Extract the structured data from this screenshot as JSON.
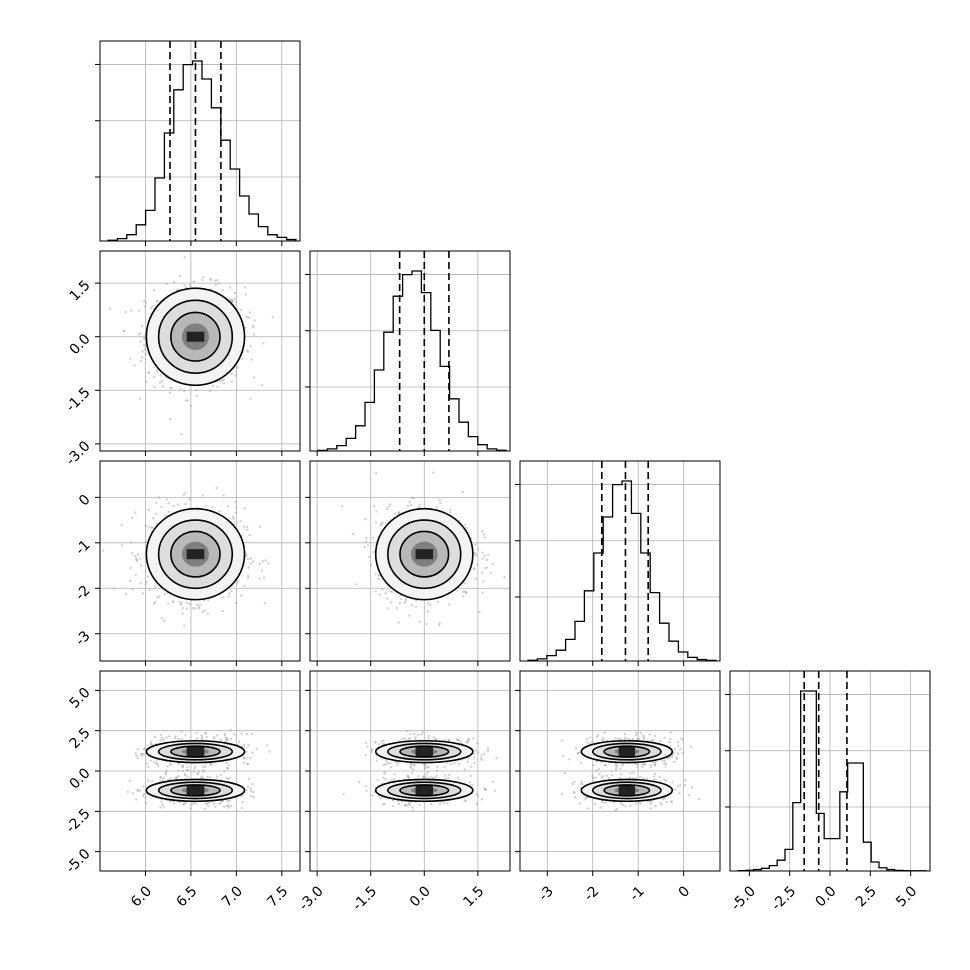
{
  "chart_data": {
    "type": "corner",
    "grid": true,
    "parameters": [
      {
        "range": [
          5.5,
          7.7
        ],
        "ticks": [
          6.0,
          6.5,
          7.0,
          7.5
        ],
        "tick_labels": [
          "6.0",
          "6.5",
          "7.0",
          "7.5"
        ],
        "mean": 6.55,
        "std": 0.27,
        "quantiles": [
          6.27,
          6.55,
          6.83
        ],
        "hist": [
          0.004,
          0.013,
          0.035,
          0.09,
          0.17,
          0.35,
          0.6,
          0.84,
          0.98,
          1.0,
          0.9,
          0.74,
          0.56,
          0.4,
          0.25,
          0.15,
          0.08,
          0.035,
          0.02,
          0.008
        ]
      },
      {
        "range": [
          -3.2,
          2.4
        ],
        "ticks": [
          -3.0,
          -1.5,
          0.0,
          1.5
        ],
        "tick_labels": [
          "-3.0",
          "-1.5",
          "0.0",
          "1.5"
        ],
        "mean": 0.0,
        "std": 0.68,
        "quantiles": [
          -0.69,
          0.0,
          0.69
        ],
        "hist": [
          0.003,
          0.012,
          0.03,
          0.07,
          0.14,
          0.27,
          0.45,
          0.66,
          0.86,
          0.98,
          1.0,
          0.88,
          0.67,
          0.47,
          0.29,
          0.16,
          0.08,
          0.035,
          0.012,
          0.004
        ]
      },
      {
        "range": [
          -3.6,
          0.8
        ],
        "ticks": [
          -3,
          -2,
          -1,
          0
        ],
        "tick_labels": [
          "-3",
          "-2",
          "-1",
          "0"
        ],
        "mean": -1.25,
        "std": 0.5,
        "quantiles": [
          -1.8,
          -1.28,
          -0.78
        ],
        "hist": [
          0.004,
          0.012,
          0.03,
          0.06,
          0.12,
          0.22,
          0.39,
          0.6,
          0.8,
          0.98,
          1.0,
          0.82,
          0.6,
          0.38,
          0.21,
          0.11,
          0.05,
          0.02,
          0.008,
          0.003
        ]
      },
      {
        "range": [
          -6.2,
          6.2
        ],
        "ticks": [
          -5.0,
          -2.5,
          0.0,
          2.5,
          5.0
        ],
        "tick_labels": [
          "-5.0",
          "-2.5",
          "0.0",
          "2.5",
          "5.0"
        ],
        "modes": [
          -1.2,
          1.2
        ],
        "quantiles": [
          -1.6,
          -0.7,
          1.05
        ],
        "hist": [
          0.002,
          0.004,
          0.008,
          0.015,
          0.03,
          0.06,
          0.12,
          0.38,
          1.0,
          1.0,
          0.32,
          0.18,
          0.18,
          0.44,
          0.6,
          0.6,
          0.16,
          0.05,
          0.018,
          0.008,
          0.003,
          0.002,
          0.001,
          0.001
        ]
      }
    ],
    "joint_y_ticks": [
      null,
      {
        "ticks": [
          -3.0,
          -1.5,
          0.0,
          1.5
        ],
        "tick_labels": [
          "-3.0",
          "-1.5",
          "0.0",
          "1.5"
        ]
      },
      {
        "ticks": [
          -3,
          -2,
          -1,
          0
        ],
        "tick_labels": [
          "-3",
          "-2",
          "-1",
          "0"
        ]
      },
      {
        "ticks": [
          -5.0,
          -2.5,
          0.0,
          2.5,
          5.0
        ],
        "tick_labels": [
          "-5.0",
          "-2.5",
          "0.0",
          "2.5",
          "5.0"
        ]
      }
    ]
  }
}
